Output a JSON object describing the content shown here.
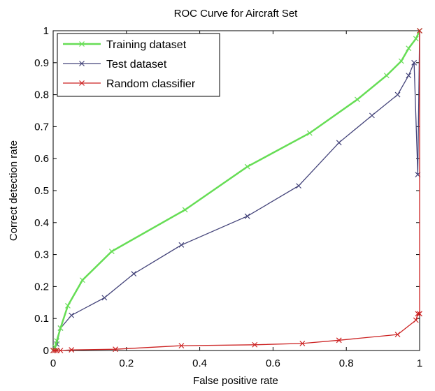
{
  "chart_data": {
    "type": "line",
    "title": "ROC Curve for Aircraft Set",
    "xlabel": "False positive rate",
    "ylabel": "Correct detection rate",
    "xlim": [
      0,
      1
    ],
    "ylim": [
      0,
      1
    ],
    "xticks": [
      0,
      0.2,
      0.4,
      0.6,
      0.8,
      1
    ],
    "xtick_labels": [
      "0",
      "0.2",
      "0.4",
      "0.6",
      "0.8",
      "1"
    ],
    "yticks": [
      0,
      0.1,
      0.2,
      0.3,
      0.4,
      0.5,
      0.6,
      0.7,
      0.8,
      0.9,
      1
    ],
    "ytick_labels": [
      "0",
      "0.1",
      "0.2",
      "0.3",
      "0.4",
      "0.5",
      "0.6",
      "0.7",
      "0.8",
      "0.9",
      "1"
    ],
    "grid": false,
    "legend_position": "top-left",
    "series": [
      {
        "name": "Training dataset",
        "color": "#66dd55",
        "marker": "x",
        "x": [
          0,
          0.005,
          0.01,
          0.02,
          0.04,
          0.08,
          0.16,
          0.36,
          0.53,
          0.7,
          0.83,
          0.91,
          0.95,
          0.97,
          0.99,
          1.0
        ],
        "y": [
          0,
          0.01,
          0.03,
          0.07,
          0.14,
          0.22,
          0.31,
          0.44,
          0.575,
          0.68,
          0.785,
          0.86,
          0.905,
          0.945,
          0.975,
          1.0
        ]
      },
      {
        "name": "Test dataset",
        "color": "#44447a",
        "marker": "x",
        "x": [
          0,
          0.005,
          0.01,
          0.02,
          0.05,
          0.14,
          0.22,
          0.35,
          0.53,
          0.67,
          0.78,
          0.87,
          0.94,
          0.97,
          0.985,
          0.995,
          1.0
        ],
        "y": [
          0,
          0.01,
          0.02,
          0.07,
          0.11,
          0.165,
          0.24,
          0.33,
          0.42,
          0.515,
          0.65,
          0.735,
          0.8,
          0.86,
          0.9,
          0.55,
          1.0
        ]
      },
      {
        "name": "Random classifier",
        "color": "#cc2222",
        "marker": "x",
        "x": [
          0,
          0.005,
          0.01,
          0.02,
          0.05,
          0.17,
          0.35,
          0.55,
          0.68,
          0.78,
          0.94,
          0.99,
          0.995,
          1.0,
          1.0
        ],
        "y": [
          0,
          0,
          0,
          0,
          0.002,
          0.004,
          0.015,
          0.018,
          0.022,
          0.032,
          0.05,
          0.095,
          0.115,
          0.115,
          1.0
        ]
      }
    ]
  }
}
